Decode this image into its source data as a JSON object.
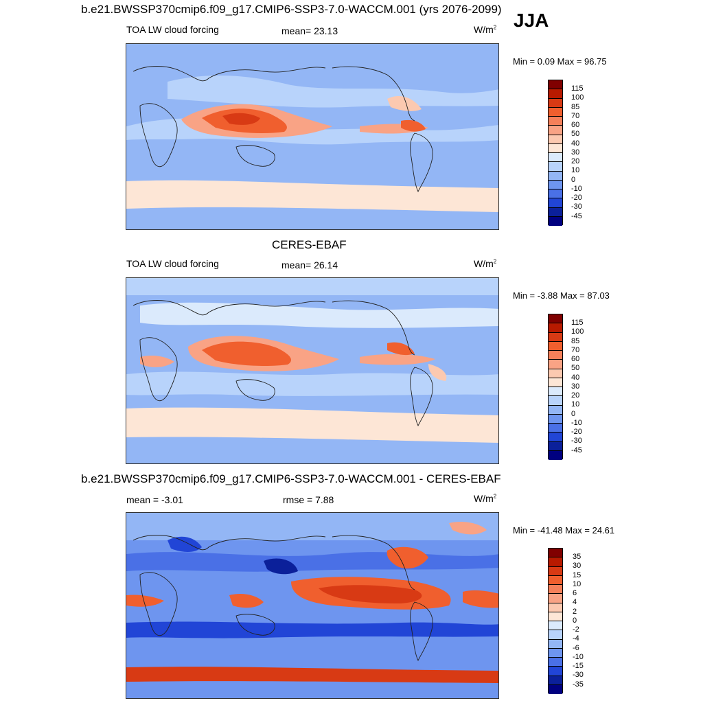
{
  "top_title": "b.e21.BWSSP370cmip6.f09_g17.CMIP6-SSP3-7.0-WACCM.001 (yrs 2076-2099)",
  "season": "JJA",
  "panels": [
    {
      "heading": "",
      "variable": "TOA LW cloud forcing",
      "stat_left": "",
      "mean_text": "mean=  23.13",
      "units": "W/m",
      "units_sup": "2",
      "minmax": "Min =   0.09 Max =  96.75",
      "colorbar_labels": [
        "115",
        "100",
        "85",
        "70",
        "60",
        "50",
        "40",
        "30",
        "20",
        "10",
        "0",
        "-10",
        "-20",
        "-30",
        "-45"
      ]
    },
    {
      "heading": "CERES-EBAF",
      "variable": "TOA LW cloud forcing",
      "stat_left": "",
      "mean_text": "mean=  26.14",
      "units": "W/m",
      "units_sup": "2",
      "minmax": "Min =  -3.88 Max =  87.03",
      "colorbar_labels": [
        "115",
        "100",
        "85",
        "70",
        "60",
        "50",
        "40",
        "30",
        "20",
        "10",
        "0",
        "-10",
        "-20",
        "-30",
        "-45"
      ]
    },
    {
      "heading": "b.e21.BWSSP370cmip6.f09_g17.CMIP6-SSP3-7.0-WACCM.001 - CERES-EBAF",
      "variable": "",
      "stat_left": "mean =  -3.01",
      "mean_text": "rmse =   7.88",
      "units": "W/m",
      "units_sup": "2",
      "minmax": "Min = -41.48 Max =  24.61",
      "colorbar_labels": [
        "35",
        "30",
        "15",
        "10",
        "6",
        "4",
        "2",
        "0",
        "-2",
        "-4",
        "-6",
        "-10",
        "-15",
        "-30",
        "-35"
      ]
    }
  ],
  "colors": {
    "abs_scale": [
      "#800000",
      "#b81a00",
      "#d83a14",
      "#f05f2e",
      "#f5805a",
      "#f9a385",
      "#fcc9b0",
      "#fde6d6",
      "#dbeafc",
      "#b8d3fb",
      "#93b6f5",
      "#6e95ef",
      "#4a70e6",
      "#2145d6",
      "#0b209a",
      "#000080"
    ],
    "diff_scale": [
      "#800000",
      "#b81a00",
      "#d83a14",
      "#f05f2e",
      "#f5805a",
      "#f9a385",
      "#fcc9b0",
      "#fde6d6",
      "#dbeafc",
      "#b8d3fb",
      "#93b6f5",
      "#6e95ef",
      "#4a70e6",
      "#2145d6",
      "#0b209a",
      "#000080"
    ],
    "map_base_abs": "#93b6f5",
    "map_base_diff": "#6e95ef"
  }
}
